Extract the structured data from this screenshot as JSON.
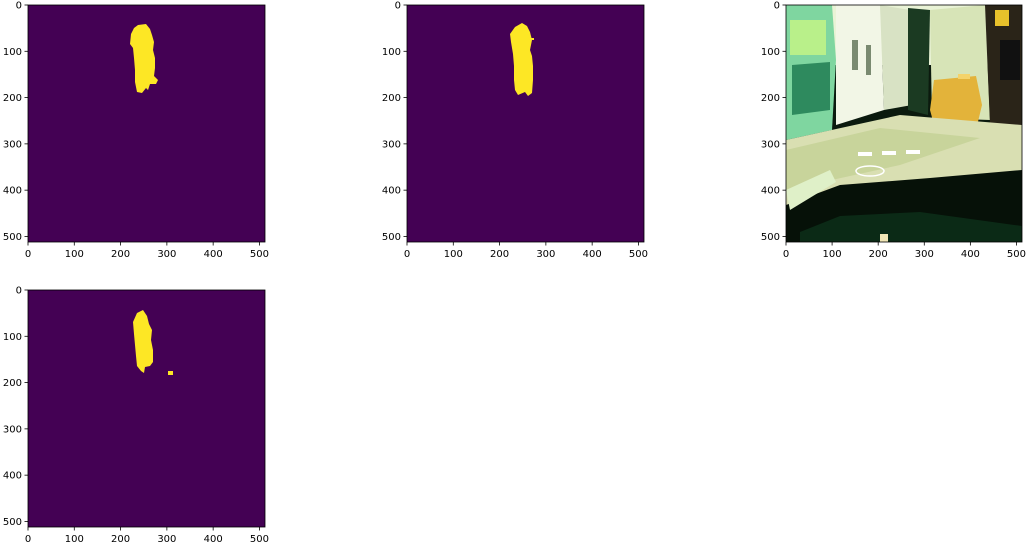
{
  "figure": {
    "background": "#ffffff",
    "panels": [
      {
        "name": "panel-1",
        "kind": "mask",
        "x_ticks": [
          "0",
          "100",
          "200",
          "300",
          "400",
          "500"
        ],
        "y_ticks": [
          "0",
          "100",
          "200",
          "300",
          "400",
          "500"
        ]
      },
      {
        "name": "panel-2",
        "kind": "mask",
        "x_ticks": [
          "0",
          "100",
          "200",
          "300",
          "400",
          "500"
        ],
        "y_ticks": [
          "0",
          "100",
          "200",
          "300",
          "400",
          "500"
        ]
      },
      {
        "name": "panel-3",
        "kind": "photo",
        "x_ticks": [
          "0",
          "100",
          "200",
          "300",
          "400",
          "500"
        ],
        "y_ticks": [
          "0",
          "100",
          "200",
          "300",
          "400",
          "500"
        ]
      },
      {
        "name": "panel-4",
        "kind": "mask",
        "x_ticks": [
          "0",
          "100",
          "200",
          "300",
          "400",
          "500"
        ],
        "y_ticks": [
          "0",
          "100",
          "200",
          "300",
          "400",
          "500"
        ]
      }
    ],
    "colors": {
      "mask_background": "#440154",
      "mask_foreground": "#fde725"
    }
  }
}
